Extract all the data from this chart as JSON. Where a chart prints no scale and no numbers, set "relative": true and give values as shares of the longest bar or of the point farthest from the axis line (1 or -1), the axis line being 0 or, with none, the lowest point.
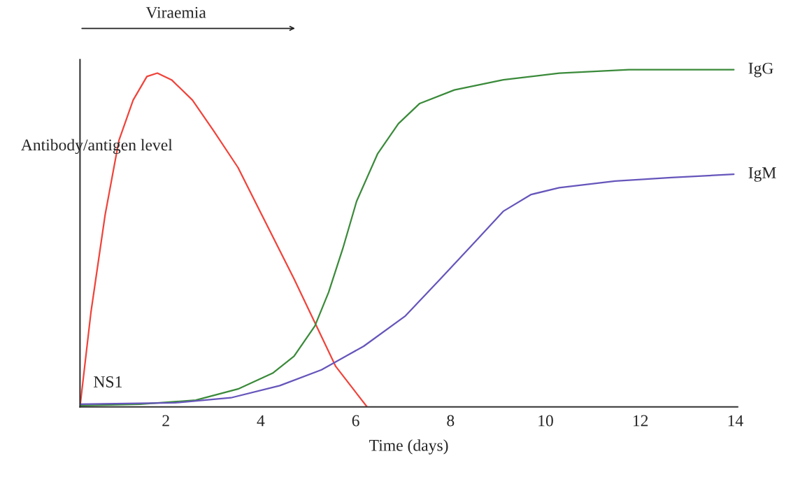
{
  "chart_data": {
    "type": "line",
    "relative": true,
    "xlabel": "Time (days)",
    "ylabel": "Antibody/antigen level",
    "annotations": [
      "Viraemia"
    ],
    "xlim": [
      0.19,
      14.05
    ],
    "xticks": [
      2,
      4,
      6,
      8,
      10,
      12,
      14
    ],
    "grid": false,
    "legend": false,
    "marker": "none",
    "line_style": "solid",
    "series": [
      {
        "name": "NS1",
        "color": "#f0433a",
        "x": [
          0.19,
          0.42,
          0.72,
          1.01,
          1.31,
          1.6,
          1.82,
          2.12,
          2.56,
          3.0,
          3.52,
          4.02,
          4.7,
          5.14,
          5.58,
          6.24
        ],
        "values": [
          0,
          0.28,
          0.57,
          0.79,
          0.91,
          0.98,
          0.99,
          0.97,
          0.91,
          0.82,
          0.71,
          0.57,
          0.38,
          0.25,
          0.12,
          0
        ]
      },
      {
        "name": "IgG",
        "color": "#3a8a3a",
        "x": [
          0.19,
          1.46,
          2.63,
          3.52,
          4.25,
          4.7,
          5.14,
          5.43,
          5.73,
          6.02,
          6.46,
          6.9,
          7.35,
          8.08,
          9.11,
          10.29,
          11.76,
          13.24,
          13.97
        ],
        "values": [
          0.004,
          0.008,
          0.02,
          0.053,
          0.1,
          0.15,
          0.24,
          0.34,
          0.47,
          0.61,
          0.75,
          0.84,
          0.9,
          0.94,
          0.97,
          0.99,
          1.0,
          1.0,
          1.0
        ]
      },
      {
        "name": "IgM",
        "color": "#6655bb",
        "x": [
          0.19,
          2.19,
          3.37,
          4.4,
          5.28,
          6.17,
          7.05,
          7.79,
          8.52,
          9.11,
          9.7,
          10.29,
          11.47,
          12.65,
          13.97
        ],
        "values": [
          0.008,
          0.012,
          0.027,
          0.063,
          0.11,
          0.18,
          0.27,
          0.38,
          0.49,
          0.58,
          0.63,
          0.65,
          0.67,
          0.68,
          0.69
        ]
      }
    ]
  }
}
